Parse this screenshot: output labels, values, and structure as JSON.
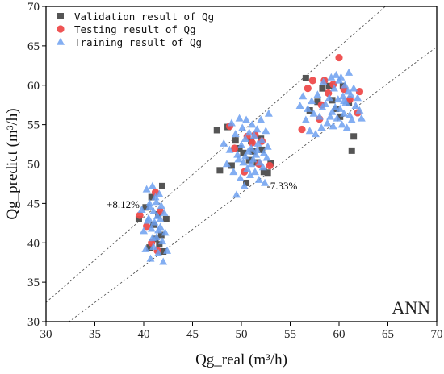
{
  "chart_data": {
    "type": "scatter",
    "xlabel": "Qg_real (m³/h)",
    "ylabel": "Qg_predict (m³/h)",
    "xlim": [
      30,
      70
    ],
    "ylim": [
      30,
      70
    ],
    "xticks": [
      30,
      35,
      40,
      45,
      50,
      55,
      60,
      65,
      70
    ],
    "yticks": [
      30,
      35,
      40,
      45,
      50,
      55,
      60,
      65,
      70
    ],
    "grid": false,
    "legend_position": "top-left",
    "model_label": "ANN",
    "reference_lines": [
      {
        "label": "+8.12%",
        "factor": 1.0812
      },
      {
        "label": "-7.33%",
        "factor": 0.9267
      }
    ],
    "series": [
      {
        "name": "Validation result of Qg",
        "marker": "square",
        "color": "#555555",
        "points": [
          [
            39.5,
            43.0
          ],
          [
            40.2,
            44.5
          ],
          [
            40.6,
            39.4
          ],
          [
            41.0,
            42.3
          ],
          [
            41.2,
            40.5
          ],
          [
            41.5,
            43.6
          ],
          [
            41.8,
            41.0
          ],
          [
            41.9,
            47.2
          ],
          [
            42.0,
            38.9
          ],
          [
            42.3,
            43.0
          ],
          [
            40.8,
            45.8
          ],
          [
            41.6,
            39.8
          ],
          [
            47.5,
            54.3
          ],
          [
            47.8,
            49.2
          ],
          [
            48.6,
            54.7
          ],
          [
            49.0,
            49.8
          ],
          [
            49.4,
            53.0
          ],
          [
            49.8,
            52.0
          ],
          [
            50.2,
            51.4
          ],
          [
            50.5,
            47.6
          ],
          [
            50.8,
            50.5
          ],
          [
            51.0,
            52.9
          ],
          [
            51.2,
            51.6
          ],
          [
            51.6,
            50.2
          ],
          [
            52.0,
            53.2
          ],
          [
            52.3,
            49.0
          ],
          [
            52.7,
            48.9
          ],
          [
            53.0,
            50.1
          ],
          [
            52.1,
            51.8
          ],
          [
            56.6,
            60.9
          ],
          [
            57.0,
            56.8
          ],
          [
            57.8,
            57.9
          ],
          [
            58.3,
            59.6
          ],
          [
            59.0,
            59.9
          ],
          [
            59.3,
            58.1
          ],
          [
            59.7,
            57.0
          ],
          [
            60.4,
            59.9
          ],
          [
            61.0,
            57.8
          ],
          [
            61.3,
            51.7
          ],
          [
            61.5,
            53.5
          ],
          [
            60.1,
            56.0
          ]
        ]
      },
      {
        "name": "Testing result of Qg",
        "marker": "circle",
        "color": "#ee4b4b",
        "points": [
          [
            39.6,
            43.5
          ],
          [
            40.3,
            42.1
          ],
          [
            40.8,
            40.0
          ],
          [
            41.2,
            46.4
          ],
          [
            41.4,
            39.0
          ],
          [
            41.7,
            44.0
          ],
          [
            48.8,
            54.8
          ],
          [
            49.3,
            52.0
          ],
          [
            50.3,
            49.0
          ],
          [
            50.6,
            53.5
          ],
          [
            51.1,
            52.7
          ],
          [
            51.4,
            53.7
          ],
          [
            51.8,
            50.0
          ],
          [
            52.1,
            52.9
          ],
          [
            52.9,
            49.8
          ],
          [
            56.2,
            54.4
          ],
          [
            56.8,
            59.6
          ],
          [
            57.3,
            60.6
          ],
          [
            58.0,
            55.7
          ],
          [
            58.2,
            57.5
          ],
          [
            58.5,
            60.6
          ],
          [
            58.9,
            59.0
          ],
          [
            59.4,
            60.1
          ],
          [
            60.0,
            63.5
          ],
          [
            60.5,
            59.5
          ],
          [
            61.1,
            58.2
          ],
          [
            61.9,
            56.5
          ],
          [
            62.1,
            59.2
          ]
        ]
      },
      {
        "name": "Training result of Qg",
        "marker": "triangle",
        "color": "#6da0f0",
        "points": [
          [
            39.8,
            44.2
          ],
          [
            40.0,
            41.5
          ],
          [
            40.2,
            39.2
          ],
          [
            40.3,
            46.8
          ],
          [
            40.5,
            43.1
          ],
          [
            40.6,
            45.0
          ],
          [
            40.7,
            38.0
          ],
          [
            40.8,
            41.8
          ],
          [
            40.9,
            47.2
          ],
          [
            41.0,
            44.0
          ],
          [
            41.0,
            39.5
          ],
          [
            41.1,
            42.6
          ],
          [
            41.2,
            45.8
          ],
          [
            41.3,
            40.7
          ],
          [
            41.4,
            43.4
          ],
          [
            41.5,
            38.7
          ],
          [
            41.6,
            46.2
          ],
          [
            41.7,
            42.0
          ],
          [
            41.8,
            44.7
          ],
          [
            41.9,
            40.2
          ],
          [
            42.0,
            37.6
          ],
          [
            42.1,
            43.8
          ],
          [
            42.2,
            41.3
          ],
          [
            42.4,
            39.0
          ],
          [
            40.4,
            42.8
          ],
          [
            40.9,
            40.6
          ],
          [
            41.3,
            45.2
          ],
          [
            41.7,
            43.0
          ],
          [
            40.6,
            44.6
          ],
          [
            41.5,
            41.6
          ],
          [
            48.2,
            52.6
          ],
          [
            48.5,
            50.0
          ],
          [
            48.8,
            51.8
          ],
          [
            49.0,
            55.2
          ],
          [
            49.2,
            49.0
          ],
          [
            49.4,
            53.8
          ],
          [
            49.5,
            46.1
          ],
          [
            49.6,
            51.2
          ],
          [
            49.8,
            55.8
          ],
          [
            49.9,
            48.2
          ],
          [
            50.0,
            52.4
          ],
          [
            50.1,
            54.6
          ],
          [
            50.2,
            50.2
          ],
          [
            50.3,
            47.2
          ],
          [
            50.4,
            53.2
          ],
          [
            50.5,
            55.6
          ],
          [
            50.6,
            49.4
          ],
          [
            50.7,
            51.6
          ],
          [
            50.8,
            54.0
          ],
          [
            50.9,
            48.6
          ],
          [
            51.0,
            52.0
          ],
          [
            51.1,
            55.0
          ],
          [
            51.2,
            50.6
          ],
          [
            51.3,
            53.6
          ],
          [
            51.4,
            49.0
          ],
          [
            51.5,
            51.2
          ],
          [
            51.6,
            54.4
          ],
          [
            51.7,
            52.6
          ],
          [
            51.8,
            48.0
          ],
          [
            51.9,
            50.2
          ],
          [
            52.0,
            55.6
          ],
          [
            52.1,
            53.0
          ],
          [
            52.2,
            49.6
          ],
          [
            52.3,
            51.4
          ],
          [
            52.4,
            47.6
          ],
          [
            52.5,
            54.2
          ],
          [
            52.6,
            50.8
          ],
          [
            52.7,
            52.2
          ],
          [
            52.8,
            56.4
          ],
          [
            49.7,
            50.6
          ],
          [
            50.4,
            51.0
          ],
          [
            51.0,
            50.0
          ],
          [
            51.6,
            51.8
          ],
          [
            56.0,
            57.4
          ],
          [
            56.3,
            58.6
          ],
          [
            56.6,
            55.6
          ],
          [
            56.8,
            57.0
          ],
          [
            57.0,
            54.2
          ],
          [
            57.2,
            58.0
          ],
          [
            57.4,
            56.4
          ],
          [
            57.6,
            53.8
          ],
          [
            57.8,
            58.8
          ],
          [
            58.0,
            56.0
          ],
          [
            58.2,
            54.6
          ],
          [
            58.4,
            60.4
          ],
          [
            58.6,
            57.6
          ],
          [
            58.8,
            55.2
          ],
          [
            59.0,
            58.4
          ],
          [
            59.2,
            61.0
          ],
          [
            59.3,
            56.6
          ],
          [
            59.4,
            54.8
          ],
          [
            59.5,
            59.6
          ],
          [
            59.6,
            57.2
          ],
          [
            59.7,
            61.3
          ],
          [
            59.8,
            55.8
          ],
          [
            59.9,
            58.2
          ],
          [
            60.0,
            60.6
          ],
          [
            60.1,
            57.0
          ],
          [
            60.2,
            61.0
          ],
          [
            60.3,
            55.0
          ],
          [
            60.4,
            58.6
          ],
          [
            60.5,
            56.4
          ],
          [
            60.6,
            60.0
          ],
          [
            60.7,
            57.8
          ],
          [
            60.8,
            54.6
          ],
          [
            60.9,
            59.2
          ],
          [
            61.0,
            61.6
          ],
          [
            61.1,
            56.2
          ],
          [
            61.2,
            58.8
          ],
          [
            61.3,
            55.6
          ],
          [
            61.5,
            59.6
          ],
          [
            61.7,
            57.4
          ],
          [
            61.9,
            58.4
          ],
          [
            62.1,
            56.8
          ],
          [
            62.3,
            55.8
          ],
          [
            58.3,
            57.2
          ],
          [
            59.1,
            56.0
          ],
          [
            60.5,
            58.0
          ]
        ]
      }
    ]
  }
}
